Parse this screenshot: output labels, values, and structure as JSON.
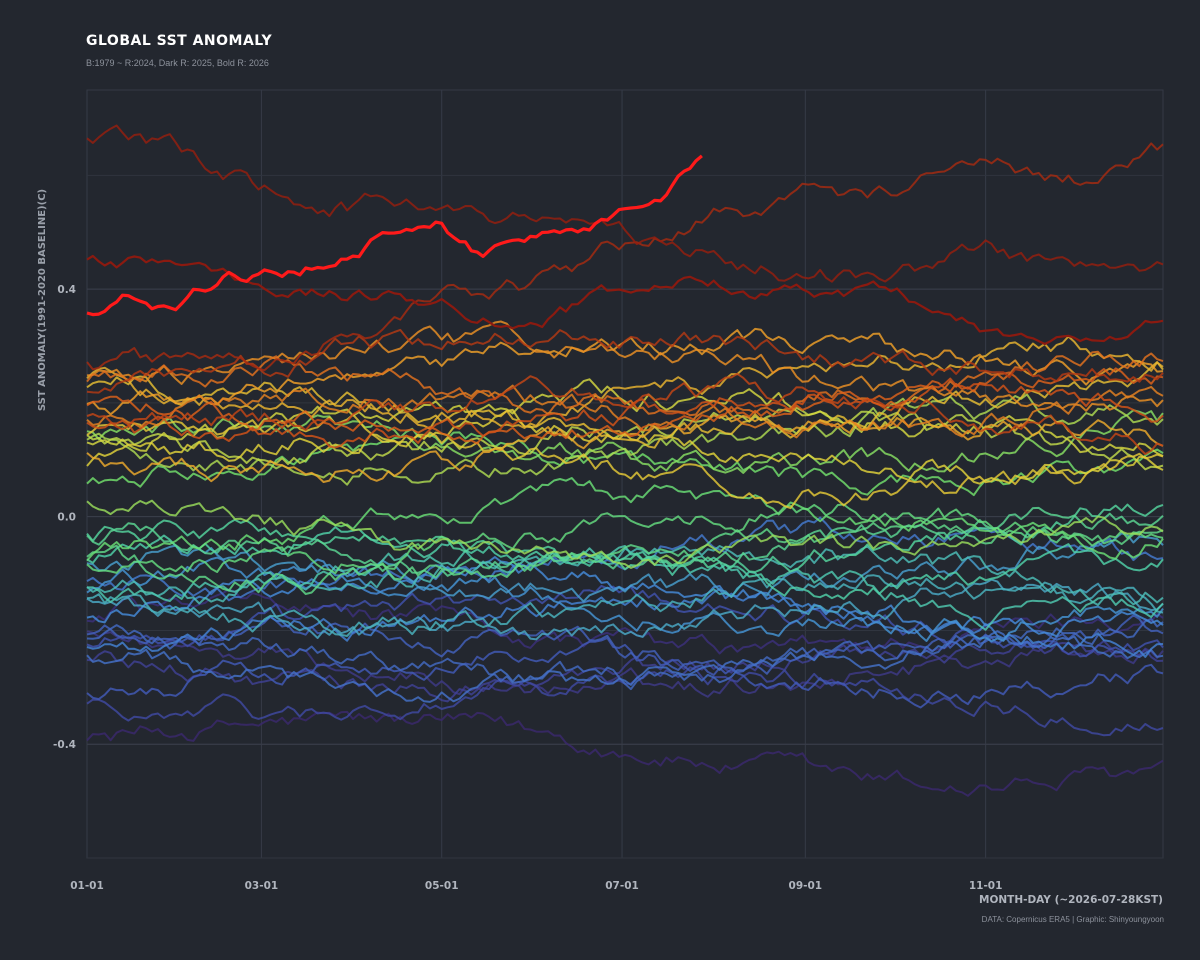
{
  "title": "Global SST Anomaly",
  "subtitle": "B:1979 ~ R:2024, Dark R: 2025, Bold R: 2026",
  "caption": "DATA: Copernicus ERA5 | Graphic: Shinyoungyoon",
  "chart_data": {
    "type": "line",
    "title": "Global SST Anomaly",
    "subtitle": "B:1979 ~ R:2024, Dark R: 2025, Bold R: 2026",
    "xlabel": "MONTH-DAY (~2026-07-28KST)",
    "ylabel": "SST ANOMALY(1991-2020 BASELINE)(C)",
    "x_domain": [
      "01-01",
      "12-31"
    ],
    "x_ticks": [
      "01-01",
      "03-01",
      "05-01",
      "07-01",
      "09-01",
      "11-01"
    ],
    "y_ticks": [
      -0.4,
      0.0,
      0.4
    ],
    "ylim": [
      -0.6,
      0.75
    ],
    "grid": true,
    "legend": "none",
    "series_summary": {
      "first_year": 1979,
      "last_year": 2024,
      "color_scale": "blue (1979) to red (2024)",
      "series_2025_color": "#8b1a10",
      "series_2026_color": "#ff1a1a"
    },
    "series": [
      {
        "year": 2026,
        "style": "bold",
        "x": [
          "01-01",
          "01-15",
          "02-01",
          "02-15",
          "03-01",
          "03-15",
          "04-01",
          "04-15",
          "05-01",
          "05-15",
          "06-01",
          "06-15",
          "07-01",
          "07-15",
          "07-28"
        ],
        "values": [
          0.35,
          0.38,
          0.37,
          0.42,
          0.42,
          0.43,
          0.48,
          0.51,
          0.53,
          0.46,
          0.49,
          0.51,
          0.53,
          0.57,
          0.63
        ]
      },
      {
        "year": 2025,
        "style": "dark",
        "x": [
          "01-01",
          "02-01",
          "03-01",
          "04-01",
          "05-01",
          "06-01",
          "07-01",
          "08-01",
          "09-01",
          "10-01",
          "11-01",
          "12-01",
          "12-31"
        ],
        "values": [
          0.45,
          0.45,
          0.4,
          0.39,
          0.38,
          0.34,
          0.39,
          0.42,
          0.39,
          0.38,
          0.32,
          0.3,
          0.34
        ]
      },
      {
        "year": 2024,
        "x": [
          "01-01",
          "02-01",
          "03-01",
          "04-01",
          "05-01",
          "06-01",
          "07-01",
          "08-01",
          "09-01",
          "10-01",
          "11-01",
          "12-01",
          "12-31"
        ],
        "values": [
          0.67,
          0.63,
          0.58,
          0.55,
          0.55,
          0.52,
          0.51,
          0.46,
          0.43,
          0.42,
          0.47,
          0.43,
          0.43
        ]
      },
      {
        "year": 2023,
        "x": [
          "01-01",
          "02-01",
          "03-01",
          "04-01",
          "05-01",
          "06-01",
          "07-01",
          "08-01",
          "09-01",
          "10-01",
          "11-01",
          "12-01",
          "12-31"
        ],
        "values": [
          0.26,
          0.27,
          0.28,
          0.33,
          0.37,
          0.4,
          0.47,
          0.53,
          0.56,
          0.57,
          0.61,
          0.6,
          0.65
        ]
      }
    ]
  }
}
